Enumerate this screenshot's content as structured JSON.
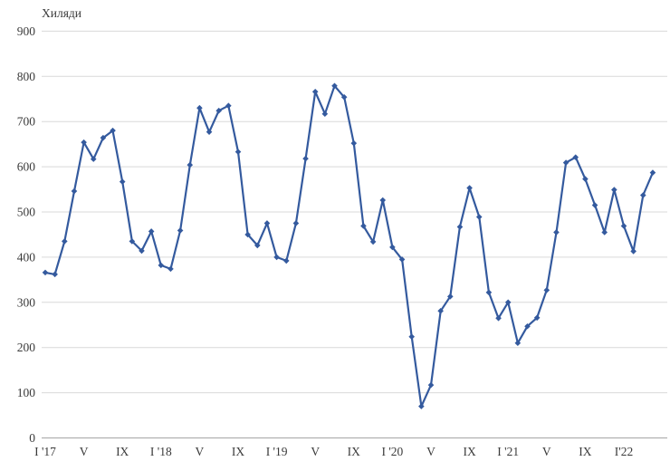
{
  "chart_data": {
    "type": "line",
    "title": "Хиляди",
    "xlabel": "",
    "ylabel": "",
    "ylim": [
      0,
      900
    ],
    "ytick_step": 100,
    "ytick_labels": [
      "0",
      "100",
      "200",
      "300",
      "400",
      "500",
      "600",
      "700",
      "800",
      "900"
    ],
    "grid": "horizontal",
    "legend": "none",
    "line_color": "#345a9e",
    "grid_color": "#d9d9d9",
    "axis_color": "#a6a6a6",
    "text_color": "#3a3a3a",
    "marker": "diamond",
    "x_tick_labels": [
      {
        "i": 0,
        "label": "I '17"
      },
      {
        "i": 4,
        "label": "V"
      },
      {
        "i": 8,
        "label": "IX"
      },
      {
        "i": 12,
        "label": "I '18"
      },
      {
        "i": 16,
        "label": "V"
      },
      {
        "i": 20,
        "label": "IX"
      },
      {
        "i": 24,
        "label": "I '19"
      },
      {
        "i": 28,
        "label": "V"
      },
      {
        "i": 32,
        "label": "IX"
      },
      {
        "i": 36,
        "label": "I '20"
      },
      {
        "i": 40,
        "label": "V"
      },
      {
        "i": 44,
        "label": "IX"
      },
      {
        "i": 48,
        "label": "I '21"
      },
      {
        "i": 52,
        "label": "V"
      },
      {
        "i": 56,
        "label": "IX"
      },
      {
        "i": 60,
        "label": "I'22"
      }
    ],
    "x": [
      "2017-01",
      "2017-02",
      "2017-03",
      "2017-04",
      "2017-05",
      "2017-06",
      "2017-07",
      "2017-08",
      "2017-09",
      "2017-10",
      "2017-11",
      "2017-12",
      "2018-01",
      "2018-02",
      "2018-03",
      "2018-04",
      "2018-05",
      "2018-06",
      "2018-07",
      "2018-08",
      "2018-09",
      "2018-10",
      "2018-11",
      "2018-12",
      "2019-01",
      "2019-02",
      "2019-03",
      "2019-04",
      "2019-05",
      "2019-06",
      "2019-07",
      "2019-08",
      "2019-09",
      "2019-10",
      "2019-11",
      "2019-12",
      "2020-01",
      "2020-02",
      "2020-03",
      "2020-04",
      "2020-05",
      "2020-06",
      "2020-07",
      "2020-08",
      "2020-09",
      "2020-10",
      "2020-11",
      "2020-12",
      "2021-01",
      "2021-02",
      "2021-03",
      "2021-04",
      "2021-05",
      "2021-06",
      "2021-07",
      "2021-08",
      "2021-09",
      "2021-10",
      "2021-11",
      "2021-12",
      "2022-01",
      "2022-02",
      "2022-03",
      "2022-04"
    ],
    "values": [
      366,
      362,
      435,
      546,
      654,
      617,
      664,
      680,
      567,
      435,
      414,
      457,
      382,
      374,
      459,
      604,
      730,
      677,
      724,
      735,
      633,
      450,
      426,
      475,
      400,
      392,
      475,
      618,
      766,
      717,
      779,
      754,
      652,
      469,
      434,
      526,
      422,
      395,
      224,
      70,
      117,
      281,
      313,
      467,
      553,
      489,
      322,
      265,
      300,
      210,
      247,
      266,
      327,
      455,
      609,
      621,
      573,
      515,
      455,
      549,
      469,
      413,
      537,
      587
    ]
  }
}
